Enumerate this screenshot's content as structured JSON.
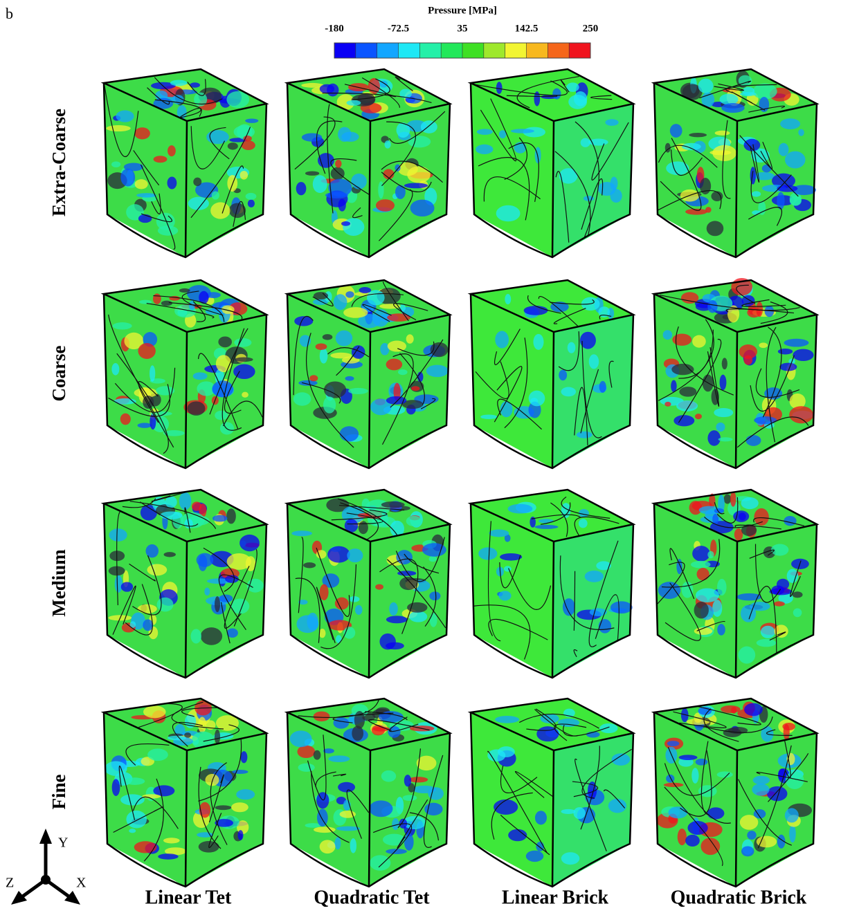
{
  "panel_label": "b",
  "colorbar": {
    "title": "Pressure [MPa]",
    "lim": [
      -180,
      250
    ],
    "ticks": [
      -180,
      -72.5,
      35,
      142.5,
      250
    ],
    "colors": [
      "#0a00f5",
      "#0a55ff",
      "#12a6ff",
      "#1ee8f5",
      "#24f0a8",
      "#22e85a",
      "#3ee024",
      "#9ee82c",
      "#f2f532",
      "#f7b81e",
      "#f5661a",
      "#f0141e"
    ]
  },
  "rows": [
    "Extra-Coarse",
    "Coarse",
    "Medium",
    "Fine"
  ],
  "columns": [
    "Linear Tet",
    "Quadratic Tet",
    "Linear Brick",
    "Quadratic Brick"
  ],
  "axes": {
    "y": "Y",
    "z": "Z",
    "x": "X"
  }
}
